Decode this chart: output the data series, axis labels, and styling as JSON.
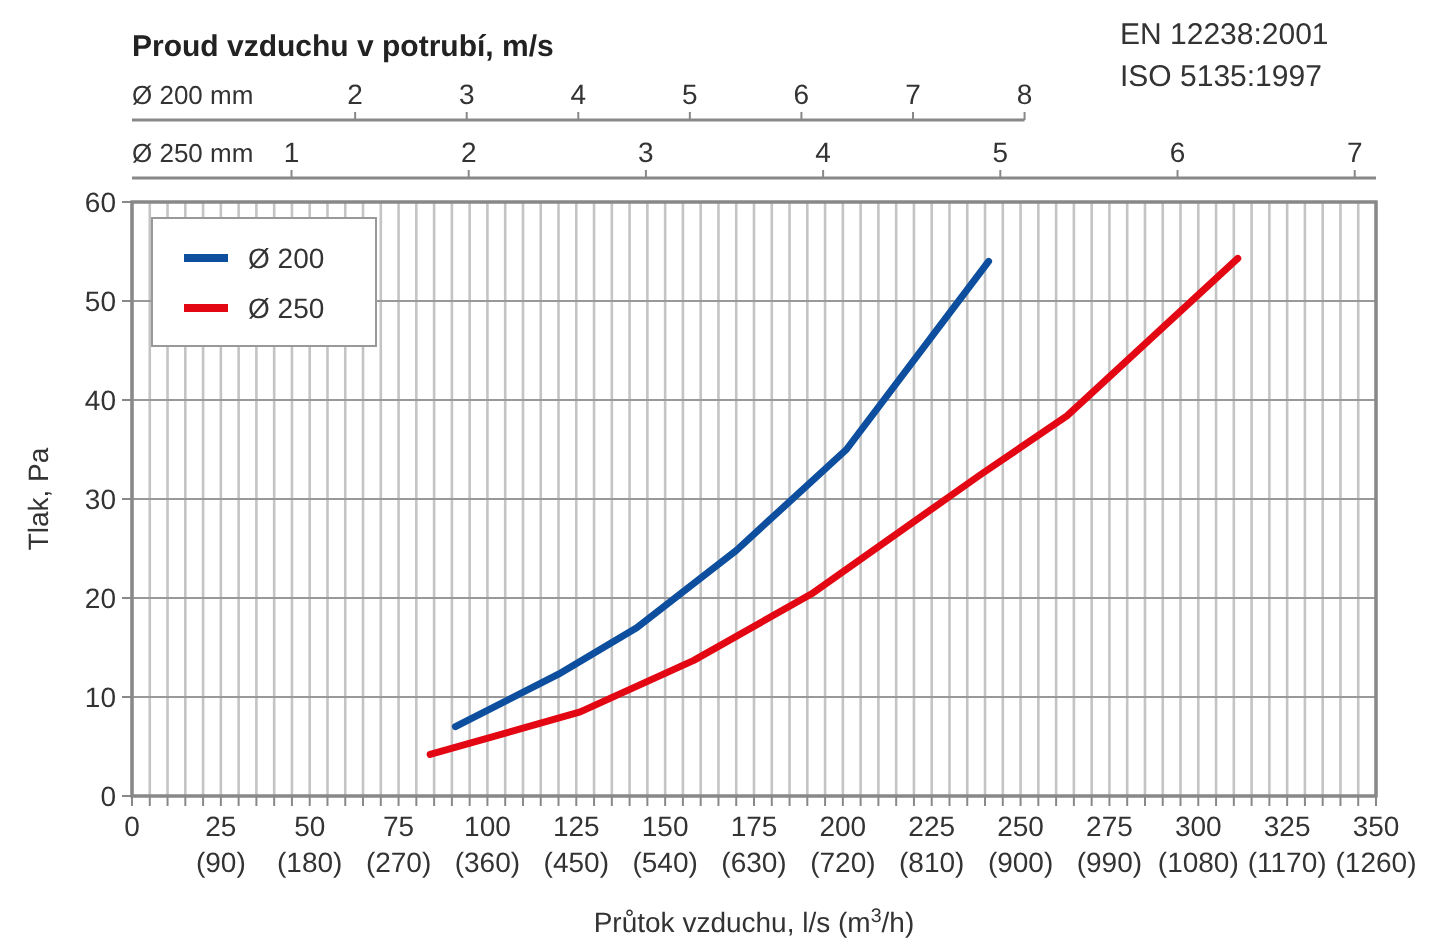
{
  "chart_data": [
    {
      "type": "line",
      "title": "Proud vzduchu v potrubí, m/s",
      "xlabel": "Průtok vzduchu, l/s (m$^{3}$/h)",
      "ylabel": "Tlak, Pa",
      "x2label": "Ø 200 mm",
      "x2lim": [
        0,
        11.15
      ],
      "x2ticks": [
        2,
        3,
        4,
        5,
        6,
        7,
        8
      ],
      "annotations": [
        "EN 12238:2001",
        "ISO 5135:1997"
      ],
      "xlim": [
        0,
        350
      ],
      "ylim": [
        0,
        60
      ],
      "yticks": [
        0,
        10,
        20,
        30,
        40,
        50,
        60
      ],
      "xticks": [
        0,
        {
          "value": 5,
          "label": null
        },
        {
          "value": 10,
          "label": null
        },
        {
          "value": 15,
          "label": null
        },
        {
          "value": 20,
          "label": null
        },
        25,
        {
          "value": 30,
          "label": null
        },
        {
          "value": 35,
          "label": null
        },
        {
          "value": 40,
          "label": null
        },
        {
          "value": 45,
          "label": null
        },
        50,
        {
          "value": 55,
          "label": null
        },
        {
          "value": 60,
          "label": null
        },
        {
          "value": 65,
          "label": null
        },
        {
          "value": 70,
          "label": null
        },
        75,
        {
          "value": 80,
          "label": null
        },
        {
          "value": 85,
          "label": null
        },
        {
          "value": 90,
          "label": null
        },
        {
          "value": 95,
          "label": null
        },
        100,
        {
          "value": 105,
          "label": null
        },
        {
          "value": 110,
          "label": null
        },
        {
          "value": 115,
          "label": null
        },
        {
          "value": 120,
          "label": null
        },
        125,
        {
          "value": 130,
          "label": null
        },
        {
          "value": 135,
          "label": null
        },
        {
          "value": 140,
          "label": null
        },
        {
          "value": 145,
          "label": null
        },
        150,
        {
          "value": 155,
          "label": null
        },
        {
          "value": 160,
          "label": null
        },
        {
          "value": 165,
          "label": null
        },
        {
          "value": 170,
          "label": null
        },
        175,
        {
          "value": 180,
          "label": null
        },
        {
          "value": 185,
          "label": null
        },
        {
          "value": 190,
          "label": null
        },
        {
          "value": 195,
          "label": null
        },
        200,
        {
          "value": 205,
          "label": null
        },
        {
          "value": 210,
          "label": null
        },
        {
          "value": 215,
          "label": null
        },
        {
          "value": 220,
          "label": null
        },
        225,
        {
          "value": 230,
          "label": null
        },
        {
          "value": 235,
          "label": null
        },
        {
          "value": 240,
          "label": null
        },
        {
          "value": 245,
          "label": null
        },
        250,
        {
          "value": 255,
          "label": null
        },
        {
          "value": 260,
          "label": null
        },
        {
          "value": 265,
          "label": null
        },
        {
          "value": 270,
          "label": null
        },
        275,
        {
          "value": 280,
          "label": null
        },
        {
          "value": 285,
          "label": null
        },
        {
          "value": 290,
          "label": null
        },
        {
          "value": 295,
          "label": null
        },
        300,
        {
          "value": 305,
          "label": null
        },
        {
          "value": 310,
          "label": null
        },
        {
          "value": 315,
          "label": null
        },
        {
          "value": 320,
          "label": null
        },
        325,
        {
          "value": 330,
          "label": null
        },
        {
          "value": 335,
          "label": null
        },
        {
          "value": 340,
          "label": null
        },
        {
          "value": 345,
          "label": null
        },
        350
      ],
      "grid": true,
      "legend": "top left",
      "series": [
        {
          "name": "Ø 200",
          "color": "#0d4f9e",
          "x": [
            91,
            120,
            142,
            170,
            201,
            241
          ],
          "values": [
            7,
            12.3,
            17,
            24.8,
            35,
            54
          ]
        }
      ]
    },
    {
      "type": "line",
      "x2label": "Ø 250 mm",
      "x2lim": [
        0.1,
        7.12
      ],
      "x2ticks": [
        1,
        2,
        3,
        4,
        5,
        6,
        7
      ],
      "xlim": [
        0,
        1260
      ],
      "ylim": [
        0,
        60
      ],
      "tick_labels": "x",
      "xticks": [
        {
          "value": 90,
          "label": "(90)"
        },
        {
          "value": 180,
          "label": "(180)"
        },
        {
          "value": 270,
          "label": "(270)"
        },
        {
          "value": 360,
          "label": "(360)"
        },
        {
          "value": 450,
          "label": "(450)"
        },
        {
          "value": 540,
          "label": "(540)"
        },
        {
          "value": 630,
          "label": "(630)"
        },
        {
          "value": 720,
          "label": "(720)"
        },
        {
          "value": 810,
          "label": "(810)"
        },
        {
          "value": 900,
          "label": "(900)"
        },
        {
          "value": 990,
          "label": "(990)"
        },
        {
          "value": 1080,
          "label": "(1080)"
        },
        {
          "value": 1170,
          "label": "(1170)"
        },
        {
          "value": 1260,
          "label": "(1260)"
        }
      ],
      "legend": "top left",
      "series": [
        {
          "name": "Ø 250",
          "color": "#e30613",
          "x": [
            302,
            454,
            569,
            688,
            860,
            947,
            1120
          ],
          "values": [
            4.2,
            8.5,
            13.7,
            20.4,
            32.5,
            38.4,
            54.3
          ]
        }
      ]
    }
  ]
}
